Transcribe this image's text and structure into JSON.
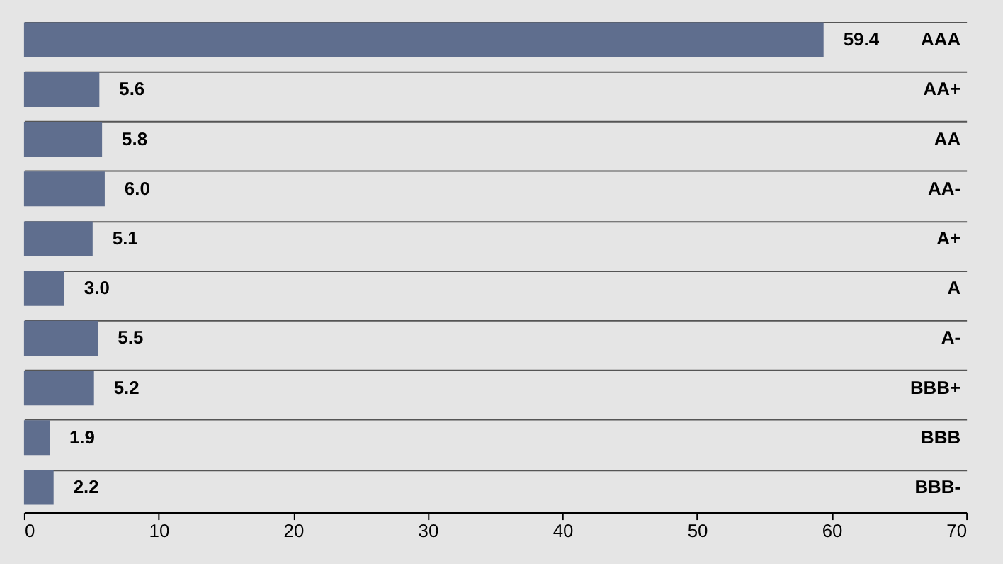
{
  "chart_data": {
    "type": "bar",
    "orientation": "horizontal",
    "categories": [
      "AAA",
      "AA+",
      "AA",
      "AA-",
      "A+",
      "A",
      "A-",
      "BBB+",
      "BBB",
      "BBB-"
    ],
    "values": [
      59.4,
      5.6,
      5.8,
      6.0,
      5.1,
      3.0,
      5.5,
      5.2,
      1.9,
      2.2
    ],
    "value_labels": [
      "59.4",
      "5.6",
      "5.8",
      "6.0",
      "5.1",
      "3.0",
      "5.5",
      "5.2",
      "1.9",
      "2.2"
    ],
    "color": "#5f6e8e",
    "xlim": [
      0,
      70
    ],
    "xticks": [
      0,
      10,
      20,
      30,
      40,
      50,
      60,
      70
    ],
    "grid": "y"
  }
}
